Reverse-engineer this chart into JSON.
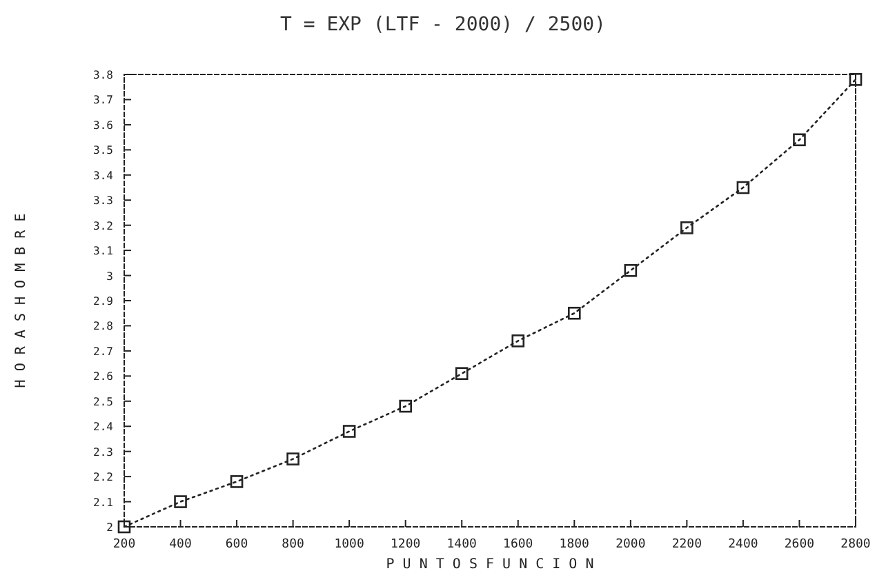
{
  "chart_data": {
    "type": "line",
    "title": "T = EXP (LTF - 2000) / 2500)",
    "xlabel": "P U N T O S   F U N C I O N",
    "ylabel": "H O R A S   H O M B R E",
    "x": [
      200,
      400,
      600,
      800,
      1000,
      1200,
      1400,
      1600,
      1800,
      2000,
      2200,
      2400,
      2600,
      2800
    ],
    "series": [
      {
        "color": "#222222",
        "values": [
          2.0,
          2.1,
          2.18,
          2.27,
          2.38,
          2.48,
          2.61,
          2.74,
          2.85,
          3.02,
          3.19,
          3.35,
          3.54,
          3.78
        ]
      }
    ],
    "xlim": [
      200,
      2800
    ],
    "xticks": [
      200,
      400,
      600,
      800,
      1000,
      1200,
      1400,
      1600,
      1800,
      2000,
      2200,
      2400,
      2600,
      2800
    ],
    "ylim": [
      2,
      3.8
    ],
    "yticks": [
      2,
      2.1,
      2.2,
      2.3,
      2.4,
      2.5,
      2.6,
      2.7,
      2.8,
      2.9,
      3,
      3.1,
      3.2,
      3.3,
      3.4,
      3.5,
      3.6,
      3.7,
      3.8
    ],
    "marker": "square",
    "line_style": "dotted",
    "grid": false
  }
}
